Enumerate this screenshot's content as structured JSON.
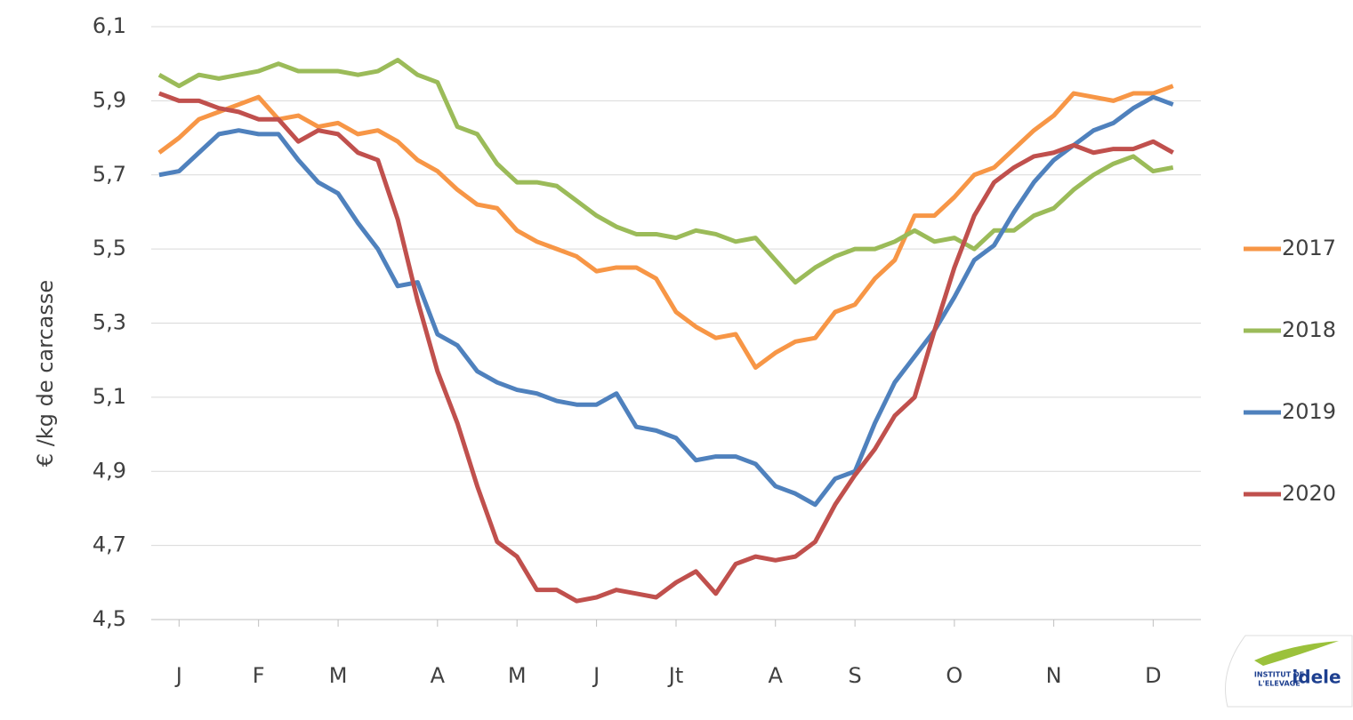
{
  "chart_data": {
    "type": "line",
    "y_label": "€ /kg de carcasse",
    "x": [
      1,
      2,
      3,
      4,
      5,
      6,
      7,
      8,
      9,
      10,
      11,
      12,
      13,
      14,
      15,
      16,
      17,
      18,
      19,
      20,
      21,
      22,
      23,
      24,
      25,
      26,
      27,
      28,
      29,
      30,
      31,
      32,
      33,
      34,
      35,
      36,
      37,
      38,
      39,
      40,
      41,
      42,
      43,
      44,
      45,
      46,
      47,
      48,
      49,
      50,
      51,
      52
    ],
    "xlim": [
      0.6,
      53.4
    ],
    "xticks": [
      {
        "value": 2,
        "label": "J"
      },
      {
        "value": 6,
        "label": "F"
      },
      {
        "value": 10,
        "label": "M"
      },
      {
        "value": 15,
        "label": "A"
      },
      {
        "value": 19,
        "label": "M"
      },
      {
        "value": 23,
        "label": "J"
      },
      {
        "value": 27,
        "label": "Jt"
      },
      {
        "value": 32,
        "label": "A"
      },
      {
        "value": 36,
        "label": "S"
      },
      {
        "value": 41,
        "label": "O"
      },
      {
        "value": 46,
        "label": "N"
      },
      {
        "value": 51,
        "label": "D"
      }
    ],
    "ylim": [
      4.5,
      6.1
    ],
    "yticks": [
      {
        "value": 4.5,
        "label": "4,5"
      },
      {
        "value": 4.7,
        "label": "4,7"
      },
      {
        "value": 4.9,
        "label": "4,9"
      },
      {
        "value": 5.1,
        "label": "5,1"
      },
      {
        "value": 5.3,
        "label": "5,3"
      },
      {
        "value": 5.5,
        "label": "5,5"
      },
      {
        "value": 5.7,
        "label": "5,7"
      },
      {
        "value": 5.9,
        "label": "5,9"
      },
      {
        "value": 6.1,
        "label": "6,1"
      }
    ],
    "grid": true,
    "legend": "right",
    "series": [
      {
        "name": "2017",
        "color": "#f79646",
        "values": [
          5.76,
          5.8,
          5.85,
          5.87,
          5.89,
          5.91,
          5.85,
          5.86,
          5.83,
          5.84,
          5.81,
          5.82,
          5.79,
          5.74,
          5.71,
          5.66,
          5.62,
          5.61,
          5.55,
          5.52,
          5.5,
          5.48,
          5.44,
          5.45,
          5.45,
          5.42,
          5.33,
          5.29,
          5.26,
          5.27,
          5.18,
          5.22,
          5.25,
          5.26,
          5.33,
          5.35,
          5.42,
          5.47,
          5.59,
          5.59,
          5.64,
          5.7,
          5.72,
          5.77,
          5.82,
          5.86,
          5.92,
          5.91,
          5.9,
          5.92,
          5.92,
          5.94
        ]
      },
      {
        "name": "2018",
        "color": "#9bbb59",
        "values": [
          5.97,
          5.94,
          5.97,
          5.96,
          5.97,
          5.98,
          6.0,
          5.98,
          5.98,
          5.98,
          5.97,
          5.98,
          6.01,
          5.97,
          5.95,
          5.83,
          5.81,
          5.73,
          5.68,
          5.68,
          5.67,
          5.63,
          5.59,
          5.56,
          5.54,
          5.54,
          5.53,
          5.55,
          5.54,
          5.52,
          5.53,
          5.47,
          5.41,
          5.45,
          5.48,
          5.5,
          5.5,
          5.52,
          5.55,
          5.52,
          5.53,
          5.5,
          5.55,
          5.55,
          5.59,
          5.61,
          5.66,
          5.7,
          5.73,
          5.75,
          5.71,
          5.72
        ]
      },
      {
        "name": "2019",
        "color": "#4f81bd",
        "values": [
          5.7,
          5.71,
          5.76,
          5.81,
          5.82,
          5.81,
          5.81,
          5.74,
          5.68,
          5.65,
          5.57,
          5.5,
          5.4,
          5.41,
          5.27,
          5.24,
          5.17,
          5.14,
          5.12,
          5.11,
          5.09,
          5.08,
          5.08,
          5.11,
          5.02,
          5.01,
          4.99,
          4.93,
          4.94,
          4.94,
          4.92,
          4.86,
          4.84,
          4.81,
          4.88,
          4.9,
          5.03,
          5.14,
          5.21,
          5.28,
          5.37,
          5.47,
          5.51,
          5.6,
          5.68,
          5.74,
          5.78,
          5.82,
          5.84,
          5.88,
          5.91,
          5.89
        ]
      },
      {
        "name": "2020",
        "color": "#c0504d",
        "values": [
          5.92,
          5.9,
          5.9,
          5.88,
          5.87,
          5.85,
          5.85,
          5.79,
          5.82,
          5.81,
          5.76,
          5.74,
          5.58,
          5.36,
          5.17,
          5.03,
          4.86,
          4.71,
          4.67,
          4.58,
          4.58,
          4.55,
          4.56,
          4.58,
          4.57,
          4.56,
          4.6,
          4.63,
          4.57,
          4.65,
          4.67,
          4.66,
          4.67,
          4.71,
          4.81,
          4.89,
          4.96,
          5.05,
          5.1,
          5.28,
          5.45,
          5.59,
          5.68,
          5.72,
          5.75,
          5.76,
          5.78,
          5.76,
          5.77,
          5.77,
          5.79,
          5.76
        ]
      }
    ]
  },
  "logo": {
    "line1": "INSTITUT DE",
    "line2": "L'ELEVAGE",
    "brand": "idele"
  }
}
